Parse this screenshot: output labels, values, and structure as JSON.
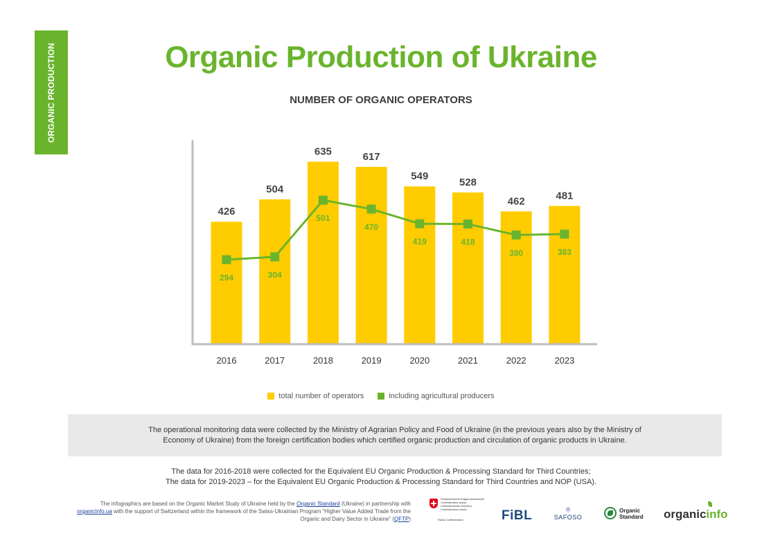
{
  "side_tab": "ORGANIC PRODUCTION",
  "title": "Organic Production of Ukraine",
  "subtitle": "NUMBER OF ORGANIC OPERATORS",
  "colors": {
    "accent_green": "#6ab42d",
    "bar_yellow": "#ffcc00",
    "line_green": "#6ab42d",
    "label_dark": "#444444"
  },
  "chart_data": {
    "type": "bar",
    "categories": [
      "2016",
      "2017",
      "2018",
      "2019",
      "2020",
      "2021",
      "2022",
      "2023"
    ],
    "series": [
      {
        "name": "total number of operators",
        "type": "bar",
        "color": "#ffcc00",
        "values": [
          426,
          504,
          635,
          617,
          549,
          528,
          462,
          481
        ]
      },
      {
        "name": "including agricultural producers",
        "type": "line",
        "color": "#6ab42d",
        "values": [
          294,
          304,
          501,
          470,
          419,
          418,
          380,
          383
        ]
      }
    ],
    "title": "NUMBER OF ORGANIC OPERATORS",
    "xlabel": "",
    "ylabel": "",
    "ylim": [
      0,
      700
    ],
    "grid": false,
    "legend": "bottom-center"
  },
  "legend": [
    {
      "label": "total number of operators",
      "color": "#ffcc00"
    },
    {
      "label": "including agricultural producers",
      "color": "#6ab42d"
    }
  ],
  "note": "The operational monitoring data were collected by the Ministry of Agrarian Policy and Food of Ukraine (in the previous years also by the Ministry of Economy of Ukraine) from the foreign certification bodies which certified organic production and circulation of organic products in Ukraine.",
  "data_note": {
    "line1": "The data for 2016-2018 were collected for the Equivalent EU Organic Production & Processing Standard for Third Countries;",
    "line2": "The data for 2019-2023 – for the Equivalent EU Organic Production & Processing Standard for Third Countries and NOP (USA)."
  },
  "credit": {
    "p1": "The infographics are based on the Organic Market Study of Ukraine held by the ",
    "link1": "Organic Standard",
    "p2": " (Ukraine) in partnership with ",
    "link2": "organicInfo.ua",
    "p3": " with the support of Switzerland within the framework of the Swiss-Ukrainian Program “Higher Value Added Trade from the Organic and Dairy Sector in Ukraine” (",
    "link3": "QFTP",
    "p4": ")"
  },
  "logos": {
    "swiss_lines": [
      "Schweizerische Eidgenossenschaft",
      "Confédération suisse",
      "Confederazione Svizzera",
      "Confederaziun svizra"
    ],
    "swiss_bottom": "Swiss Confederation",
    "fibl": "FiBL",
    "safoso": "SAFOSO",
    "organic_standard": [
      "Organic",
      "Standard"
    ],
    "organicinfo_a": "organic",
    "organicinfo_b": "info"
  }
}
